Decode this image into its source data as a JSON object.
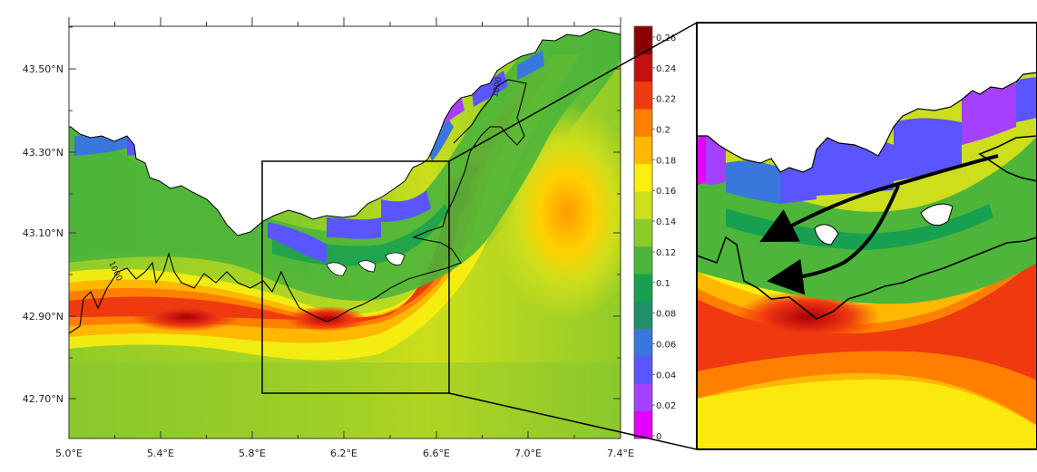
{
  "map": {
    "lon_ticks": [
      "5.0°E",
      "5.4°E",
      "5.8°E",
      "6.2°E",
      "6.6°E",
      "7.0°E",
      "7.4°E"
    ],
    "lat_ticks": [
      "43.50°N",
      "43.30°N",
      "43.10°N",
      "42.90°N",
      "42.70°N"
    ],
    "isobath_label": "1000",
    "colors": {
      "land": "#ffffff",
      "coast": "#000000",
      "isobath": "#000000"
    }
  },
  "colorbar": {
    "labels": [
      "0",
      "0.02",
      "0.04",
      "0.06",
      "0.08",
      "0.1",
      "0.12",
      "0.14",
      "0.16",
      "0.18",
      "0.2",
      "0.22",
      "0.24",
      "0.26"
    ],
    "colors": [
      "#e200ff",
      "#a640ff",
      "#5a55ff",
      "#3a77dd",
      "#1f8f6a",
      "#17a050",
      "#4cb53a",
      "#8ccc2a",
      "#ccde1c",
      "#fbee10",
      "#ffb800",
      "#ff7f00",
      "#ef3a10",
      "#c01010",
      "#8a0000"
    ]
  }
}
